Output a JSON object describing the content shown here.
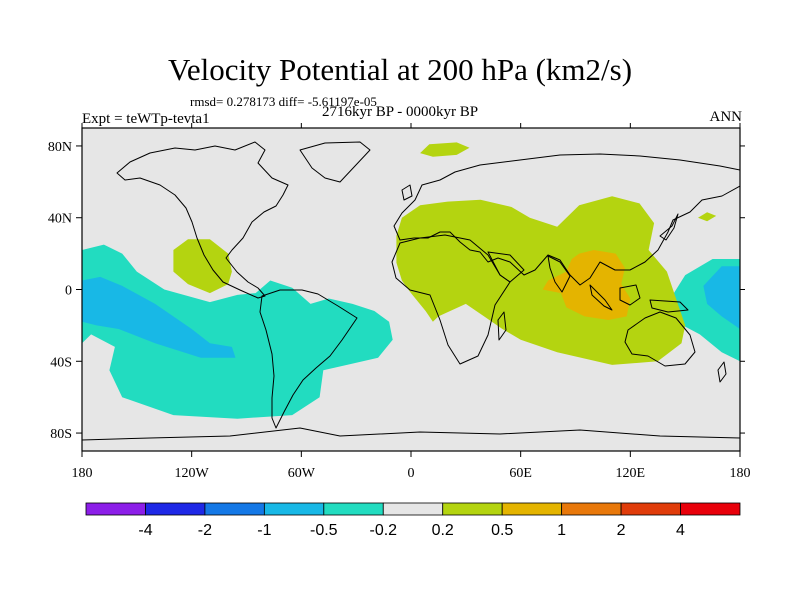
{
  "title": "Velocity Potential at 200 hPa (km2/s)",
  "stats_text": "rmsd= 0.278173 diff= -5.61197e-05",
  "experiment": "Expt = teWTp-tevta1",
  "period": "2716kyr BP - 0000kyr BP",
  "season": "ANN",
  "map": {
    "lon_range": [
      -180,
      180
    ],
    "lat_range": [
      -90,
      90
    ],
    "x_ticks": [
      {
        "lon": -180,
        "label": "180"
      },
      {
        "lon": -120,
        "label": "120W"
      },
      {
        "lon": -60,
        "label": "60W"
      },
      {
        "lon": 0,
        "label": "0"
      },
      {
        "lon": 60,
        "label": "60E"
      },
      {
        "lon": 120,
        "label": "120E"
      },
      {
        "lon": 180,
        "label": "180"
      }
    ],
    "y_ticks": [
      {
        "lat": 80,
        "label": "80N"
      },
      {
        "lat": 40,
        "label": "40N"
      },
      {
        "lat": 0,
        "label": "0"
      },
      {
        "lat": -40,
        "label": "40S"
      },
      {
        "lat": -80,
        "label": "80S"
      }
    ],
    "regions": [
      {
        "name": "pacific-tropical-negative-1",
        "level": -0.5,
        "color": "#22dcc0",
        "pts": [
          [
            -180,
            -30
          ],
          [
            -180,
            22
          ],
          [
            -168,
            25
          ],
          [
            -158,
            20
          ],
          [
            -150,
            10
          ],
          [
            -135,
            0
          ],
          [
            -110,
            -7
          ],
          [
            -95,
            -3
          ],
          [
            -85,
            -2
          ],
          [
            -77,
            5
          ],
          [
            -65,
            1
          ],
          [
            -55,
            -8
          ],
          [
            -45,
            -5
          ],
          [
            -32,
            -8
          ],
          [
            -20,
            -12
          ],
          [
            -12,
            -18
          ],
          [
            -10,
            -28
          ],
          [
            -18,
            -38
          ],
          [
            -35,
            -42
          ],
          [
            -48,
            -45
          ],
          [
            -50,
            -60
          ],
          [
            -65,
            -70
          ],
          [
            -95,
            -72
          ],
          [
            -130,
            -70
          ],
          [
            -158,
            -60
          ],
          [
            -165,
            -45
          ],
          [
            -162,
            -32
          ],
          [
            -175,
            -25
          ]
        ]
      },
      {
        "name": "pacific-tropical-negative-2",
        "level": -1,
        "color": "#18b8e6",
        "pts": [
          [
            -180,
            -18
          ],
          [
            -180,
            5
          ],
          [
            -170,
            7
          ],
          [
            -158,
            2
          ],
          [
            -140,
            -8
          ],
          [
            -120,
            -22
          ],
          [
            -110,
            -30
          ],
          [
            -98,
            -32
          ],
          [
            -96,
            -38
          ],
          [
            -115,
            -38
          ],
          [
            -140,
            -30
          ],
          [
            -160,
            -22
          ],
          [
            -172,
            -20
          ]
        ]
      },
      {
        "name": "west-pacific-negative-1",
        "level": -0.5,
        "color": "#22dcc0",
        "pts": [
          [
            180,
            17
          ],
          [
            165,
            17
          ],
          [
            150,
            8
          ],
          [
            142,
            -5
          ],
          [
            145,
            -18
          ],
          [
            158,
            -25
          ],
          [
            170,
            -35
          ],
          [
            180,
            -40
          ]
        ]
      },
      {
        "name": "west-pacific-negative-2",
        "level": -1,
        "color": "#18b8e6",
        "pts": [
          [
            180,
            13
          ],
          [
            170,
            13
          ],
          [
            160,
            2
          ],
          [
            162,
            -8
          ],
          [
            170,
            -15
          ],
          [
            180,
            -22
          ]
        ]
      },
      {
        "name": "north-pacific-positive",
        "level": 0.2,
        "color": "#b4d410",
        "pts": [
          [
            -130,
            22
          ],
          [
            -122,
            28
          ],
          [
            -110,
            28
          ],
          [
            -100,
            20
          ],
          [
            -98,
            10
          ],
          [
            -100,
            3
          ],
          [
            -110,
            -2
          ],
          [
            -122,
            3
          ],
          [
            -130,
            10
          ]
        ]
      },
      {
        "name": "north-atlantic-positive",
        "level": 0.2,
        "color": "#b4d410",
        "pts": [
          [
            5,
            76
          ],
          [
            10,
            81
          ],
          [
            25,
            82
          ],
          [
            32,
            79
          ],
          [
            25,
            75
          ],
          [
            12,
            74
          ]
        ]
      },
      {
        "name": "pacific-small-positive",
        "level": 0.2,
        "color": "#b4d410",
        "pts": [
          [
            157,
            40
          ],
          [
            162,
            43
          ],
          [
            167,
            41
          ],
          [
            162,
            38
          ]
        ]
      },
      {
        "name": "eastern-hemisphere-positive",
        "level": 0.2,
        "color": "#b4d410",
        "pts": [
          [
            -5,
            40
          ],
          [
            5,
            47
          ],
          [
            20,
            49
          ],
          [
            38,
            50
          ],
          [
            55,
            46
          ],
          [
            65,
            40
          ],
          [
            80,
            35
          ],
          [
            92,
            47
          ],
          [
            110,
            52
          ],
          [
            125,
            48
          ],
          [
            133,
            37
          ],
          [
            130,
            22
          ],
          [
            140,
            10
          ],
          [
            145,
            -5
          ],
          [
            150,
            -20
          ],
          [
            148,
            -30
          ],
          [
            135,
            -40
          ],
          [
            110,
            -42
          ],
          [
            80,
            -35
          ],
          [
            60,
            -28
          ],
          [
            50,
            -22
          ],
          [
            40,
            -15
          ],
          [
            30,
            -8
          ],
          [
            15,
            -15
          ],
          [
            12,
            -18
          ],
          [
            8,
            -12
          ],
          [
            0,
            -2
          ],
          [
            -5,
            5
          ],
          [
            -8,
            15
          ],
          [
            -8,
            30
          ]
        ]
      },
      {
        "name": "indo-pacific-positive-2",
        "level": 0.5,
        "color": "#e4b400",
        "pts": [
          [
            88,
            17
          ],
          [
            92,
            20
          ],
          [
            100,
            22
          ],
          [
            112,
            20
          ],
          [
            117,
            12
          ],
          [
            115,
            3
          ],
          [
            120,
            -5
          ],
          [
            118,
            -15
          ],
          [
            108,
            -17
          ],
          [
            95,
            -15
          ],
          [
            85,
            -10
          ],
          [
            82,
            -2
          ],
          [
            72,
            0
          ],
          [
            75,
            5
          ],
          [
            85,
            10
          ]
        ]
      }
    ]
  },
  "colorbar": {
    "colors": [
      "#8c1ee8",
      "#1e28e6",
      "#1478e6",
      "#18b8e6",
      "#22dcc0",
      "#e6e6e6",
      "#b4d410",
      "#e4b400",
      "#e8780a",
      "#e03c0a",
      "#e8000a"
    ],
    "labels": [
      "-4",
      "-2",
      "-1",
      "-0.5",
      "-0.2",
      "0.2",
      "0.5",
      "1",
      "2",
      "4"
    ]
  }
}
